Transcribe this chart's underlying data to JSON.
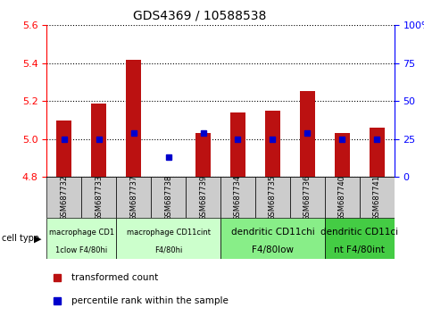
{
  "title": "GDS4369 / 10588538",
  "samples": [
    "GSM687732",
    "GSM687733",
    "GSM687737",
    "GSM687738",
    "GSM687739",
    "GSM687734",
    "GSM687735",
    "GSM687736",
    "GSM687740",
    "GSM687741"
  ],
  "transformed_counts": [
    5.1,
    5.185,
    5.42,
    4.802,
    5.03,
    5.14,
    5.15,
    5.255,
    5.03,
    5.06
  ],
  "percentile_ranks": [
    25,
    25,
    29,
    13,
    29,
    25,
    25,
    29,
    25,
    25
  ],
  "ylim": [
    4.8,
    5.6
  ],
  "yticks": [
    4.8,
    5.0,
    5.2,
    5.4,
    5.6
  ],
  "right_yticks": [
    0,
    25,
    50,
    75,
    100
  ],
  "right_ylim": [
    0,
    100
  ],
  "bar_color": "#bb1111",
  "dot_color": "#0000cc",
  "bar_bottom": 4.8,
  "cell_groups": [
    {
      "label": "macrophage CD1\n1clow F4/80hi",
      "start": 0,
      "end": 2,
      "bg": "#ccffcc"
    },
    {
      "label": "macrophage CD11cint\nF4/80hi",
      "start": 2,
      "end": 5,
      "bg": "#ccffcc"
    },
    {
      "label": "dendritic CD11chi\nF4/80low",
      "start": 5,
      "end": 8,
      "bg": "#88ee88"
    },
    {
      "label": "dendritic CD11ci\nnt F4/80int",
      "start": 8,
      "end": 10,
      "bg": "#44cc44"
    }
  ],
  "legend_bar_label": "transformed count",
  "legend_dot_label": "percentile rank within the sample",
  "cell_type_label": "cell type",
  "tick_bg_color": "#cccccc"
}
